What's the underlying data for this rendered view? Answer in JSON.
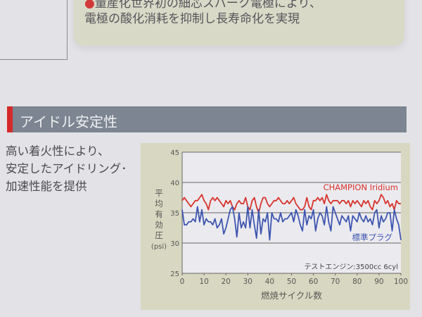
{
  "top_section": {
    "bullet": "●",
    "line1": "量産化世界初の細芯スパーク電極により、",
    "line2": "電極の酸化消耗を抑制し長寿命化を実現"
  },
  "section": {
    "title": "アイドル安定性"
  },
  "description": [
    "高い着火性により、",
    "安定したアイドリング･",
    "加速性能を提供"
  ],
  "chart_data": {
    "type": "line",
    "xlabel": "燃焼サイクル数",
    "ylabel": [
      "平",
      "均",
      "有",
      "効",
      "圧",
      "(psi)"
    ],
    "xlim": [
      0,
      100
    ],
    "ylim": [
      25,
      45
    ],
    "xticks": [
      "0",
      "10",
      "20",
      "30",
      "40",
      "50",
      "60",
      "70",
      "80",
      "90",
      "100"
    ],
    "yticks": [
      "25",
      "30",
      "35",
      "40",
      "45"
    ],
    "grid": "horizontal",
    "annotation": "テストエンジン:3500cc 6cyl",
    "x_start": 0,
    "x_step": 1,
    "series": [
      {
        "name": "CHAMPION Iridium",
        "color": "#d8332c",
        "values": [
          37,
          37.5,
          37,
          36.5,
          36,
          36.5,
          37,
          37,
          37.5,
          38,
          37,
          36.5,
          35.5,
          37,
          37.5,
          37,
          37.5,
          37,
          36.5,
          36,
          37,
          36.5,
          37,
          36,
          35.5,
          36.5,
          37,
          36.5,
          36.5,
          37.5,
          36,
          35.5,
          37,
          37.5,
          36,
          35,
          36.5,
          37.5,
          37.5,
          36.5,
          36,
          36.5,
          37,
          37,
          37.5,
          37,
          36.5,
          36.5,
          37,
          36.5,
          37,
          37.5,
          36.5,
          36,
          35.5,
          35.5,
          36,
          37.5,
          36,
          35.5,
          37,
          37,
          37.5,
          37,
          37.5,
          36.5,
          38,
          37,
          36.5,
          37,
          37,
          37,
          36.5,
          37,
          37,
          36.5,
          37,
          36,
          37,
          36.5,
          37,
          36.5,
          36,
          37,
          36.5,
          37,
          36,
          35.5,
          37,
          36.5,
          37,
          38,
          37.5,
          36.5,
          37,
          36,
          36.5,
          35.5,
          37,
          36.5,
          36.5
        ]
      },
      {
        "name": "標準プラグ",
        "color": "#3e55b0",
        "values": [
          35.5,
          33,
          33,
          33.5,
          33.5,
          34,
          33.5,
          36,
          33.5,
          35.5,
          33,
          34,
          33.5,
          33.5,
          33,
          34,
          32.5,
          33,
          34,
          31.5,
          32.5,
          34,
          35.5,
          36,
          34,
          31,
          35,
          32.5,
          33.5,
          32.5,
          36,
          32.5,
          35.5,
          33,
          30.8,
          35.5,
          31.5,
          34,
          33.5,
          35,
          30.5,
          35,
          34,
          34,
          33.5,
          35,
          33.5,
          34,
          34,
          34.5,
          35,
          33.5,
          35.5,
          34.5,
          33,
          32,
          35.5,
          33,
          34.5,
          34,
          35.5,
          32,
          34,
          35,
          34.5,
          33,
          36,
          33.5,
          32,
          36,
          35,
          34,
          33,
          34.5,
          34,
          33.5,
          34.5,
          32,
          34.5,
          34,
          33.5,
          35,
          34,
          33.5,
          34.5,
          33.5,
          34,
          33,
          35,
          35.5,
          32.5,
          34.5,
          33.5,
          34,
          35,
          35,
          32,
          35.5,
          34,
          33,
          30.5
        ]
      }
    ]
  }
}
